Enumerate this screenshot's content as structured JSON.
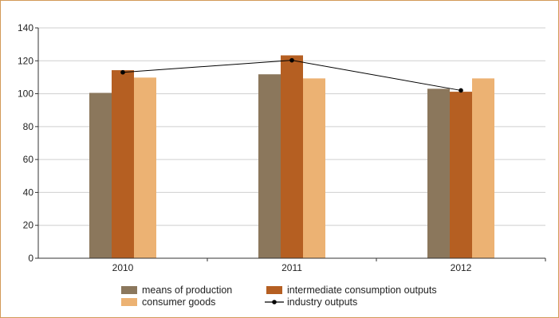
{
  "chart_data": {
    "type": "bar",
    "categories": [
      "2010",
      "2011",
      "2012"
    ],
    "ylim": [
      0,
      140
    ],
    "yticks": [
      0,
      20,
      40,
      60,
      80,
      100,
      120,
      140
    ],
    "grid": true,
    "legend_position": "bottom",
    "series": [
      {
        "name": "means of production",
        "type": "bar",
        "color": "#8b775c",
        "values": [
          100.5,
          111.8,
          103.0
        ]
      },
      {
        "name": "intermediate consumption outputs",
        "type": "bar",
        "color": "#b55f22",
        "values": [
          114.3,
          123.3,
          101.2
        ]
      },
      {
        "name": "consumer goods",
        "type": "bar",
        "color": "#ecb273",
        "values": [
          109.8,
          109.3,
          109.3
        ]
      },
      {
        "name": "industry outputs",
        "type": "line",
        "color": "#000000",
        "values": [
          113.0,
          120.3,
          102.0
        ]
      }
    ]
  }
}
